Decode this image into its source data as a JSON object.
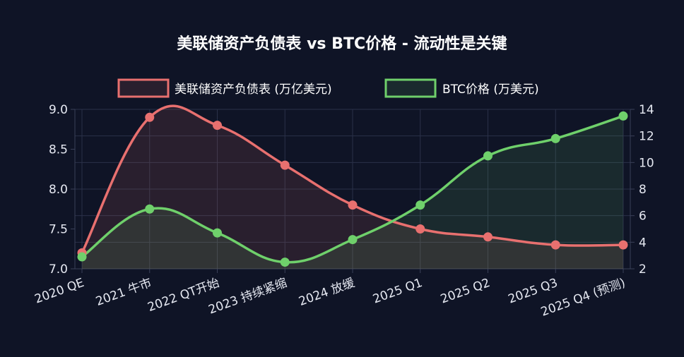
{
  "chart_data": {
    "type": "line",
    "title": "美联储资产负债表 vs BTC价格 - 流动性是关键",
    "categories": [
      "2020 QE",
      "2021 牛市",
      "2022 QT开始",
      "2023 持续紧缩",
      "2024 放缓",
      "2025 Q1",
      "2025 Q2",
      "2025 Q3",
      "2025 Q4 (预测)"
    ],
    "series": [
      {
        "name": "美联储资产负债表 (万亿美元)",
        "axis": "left",
        "color": "#e8706f",
        "fill": "rgba(232,112,111,0.12)",
        "values": [
          7.2,
          8.9,
          8.8,
          8.3,
          7.8,
          7.5,
          7.4,
          7.3,
          7.3
        ]
      },
      {
        "name": "BTC价格 (万美元)",
        "axis": "right",
        "color": "#6fd06b",
        "fill": "rgba(111,208,107,0.12)",
        "values": [
          2.9,
          6.5,
          4.7,
          2.5,
          4.2,
          6.8,
          10.5,
          11.8,
          13.5
        ]
      }
    ],
    "y_left": {
      "min": 7.0,
      "max": 9.0,
      "ticks": [
        "7.0",
        "7.5",
        "8.0",
        "8.5",
        "9.0"
      ]
    },
    "y_right": {
      "min": 2,
      "max": 14,
      "ticks": [
        "2",
        "4",
        "6",
        "8",
        "10",
        "12",
        "14"
      ]
    },
    "grid": true,
    "legend_position": "top"
  }
}
